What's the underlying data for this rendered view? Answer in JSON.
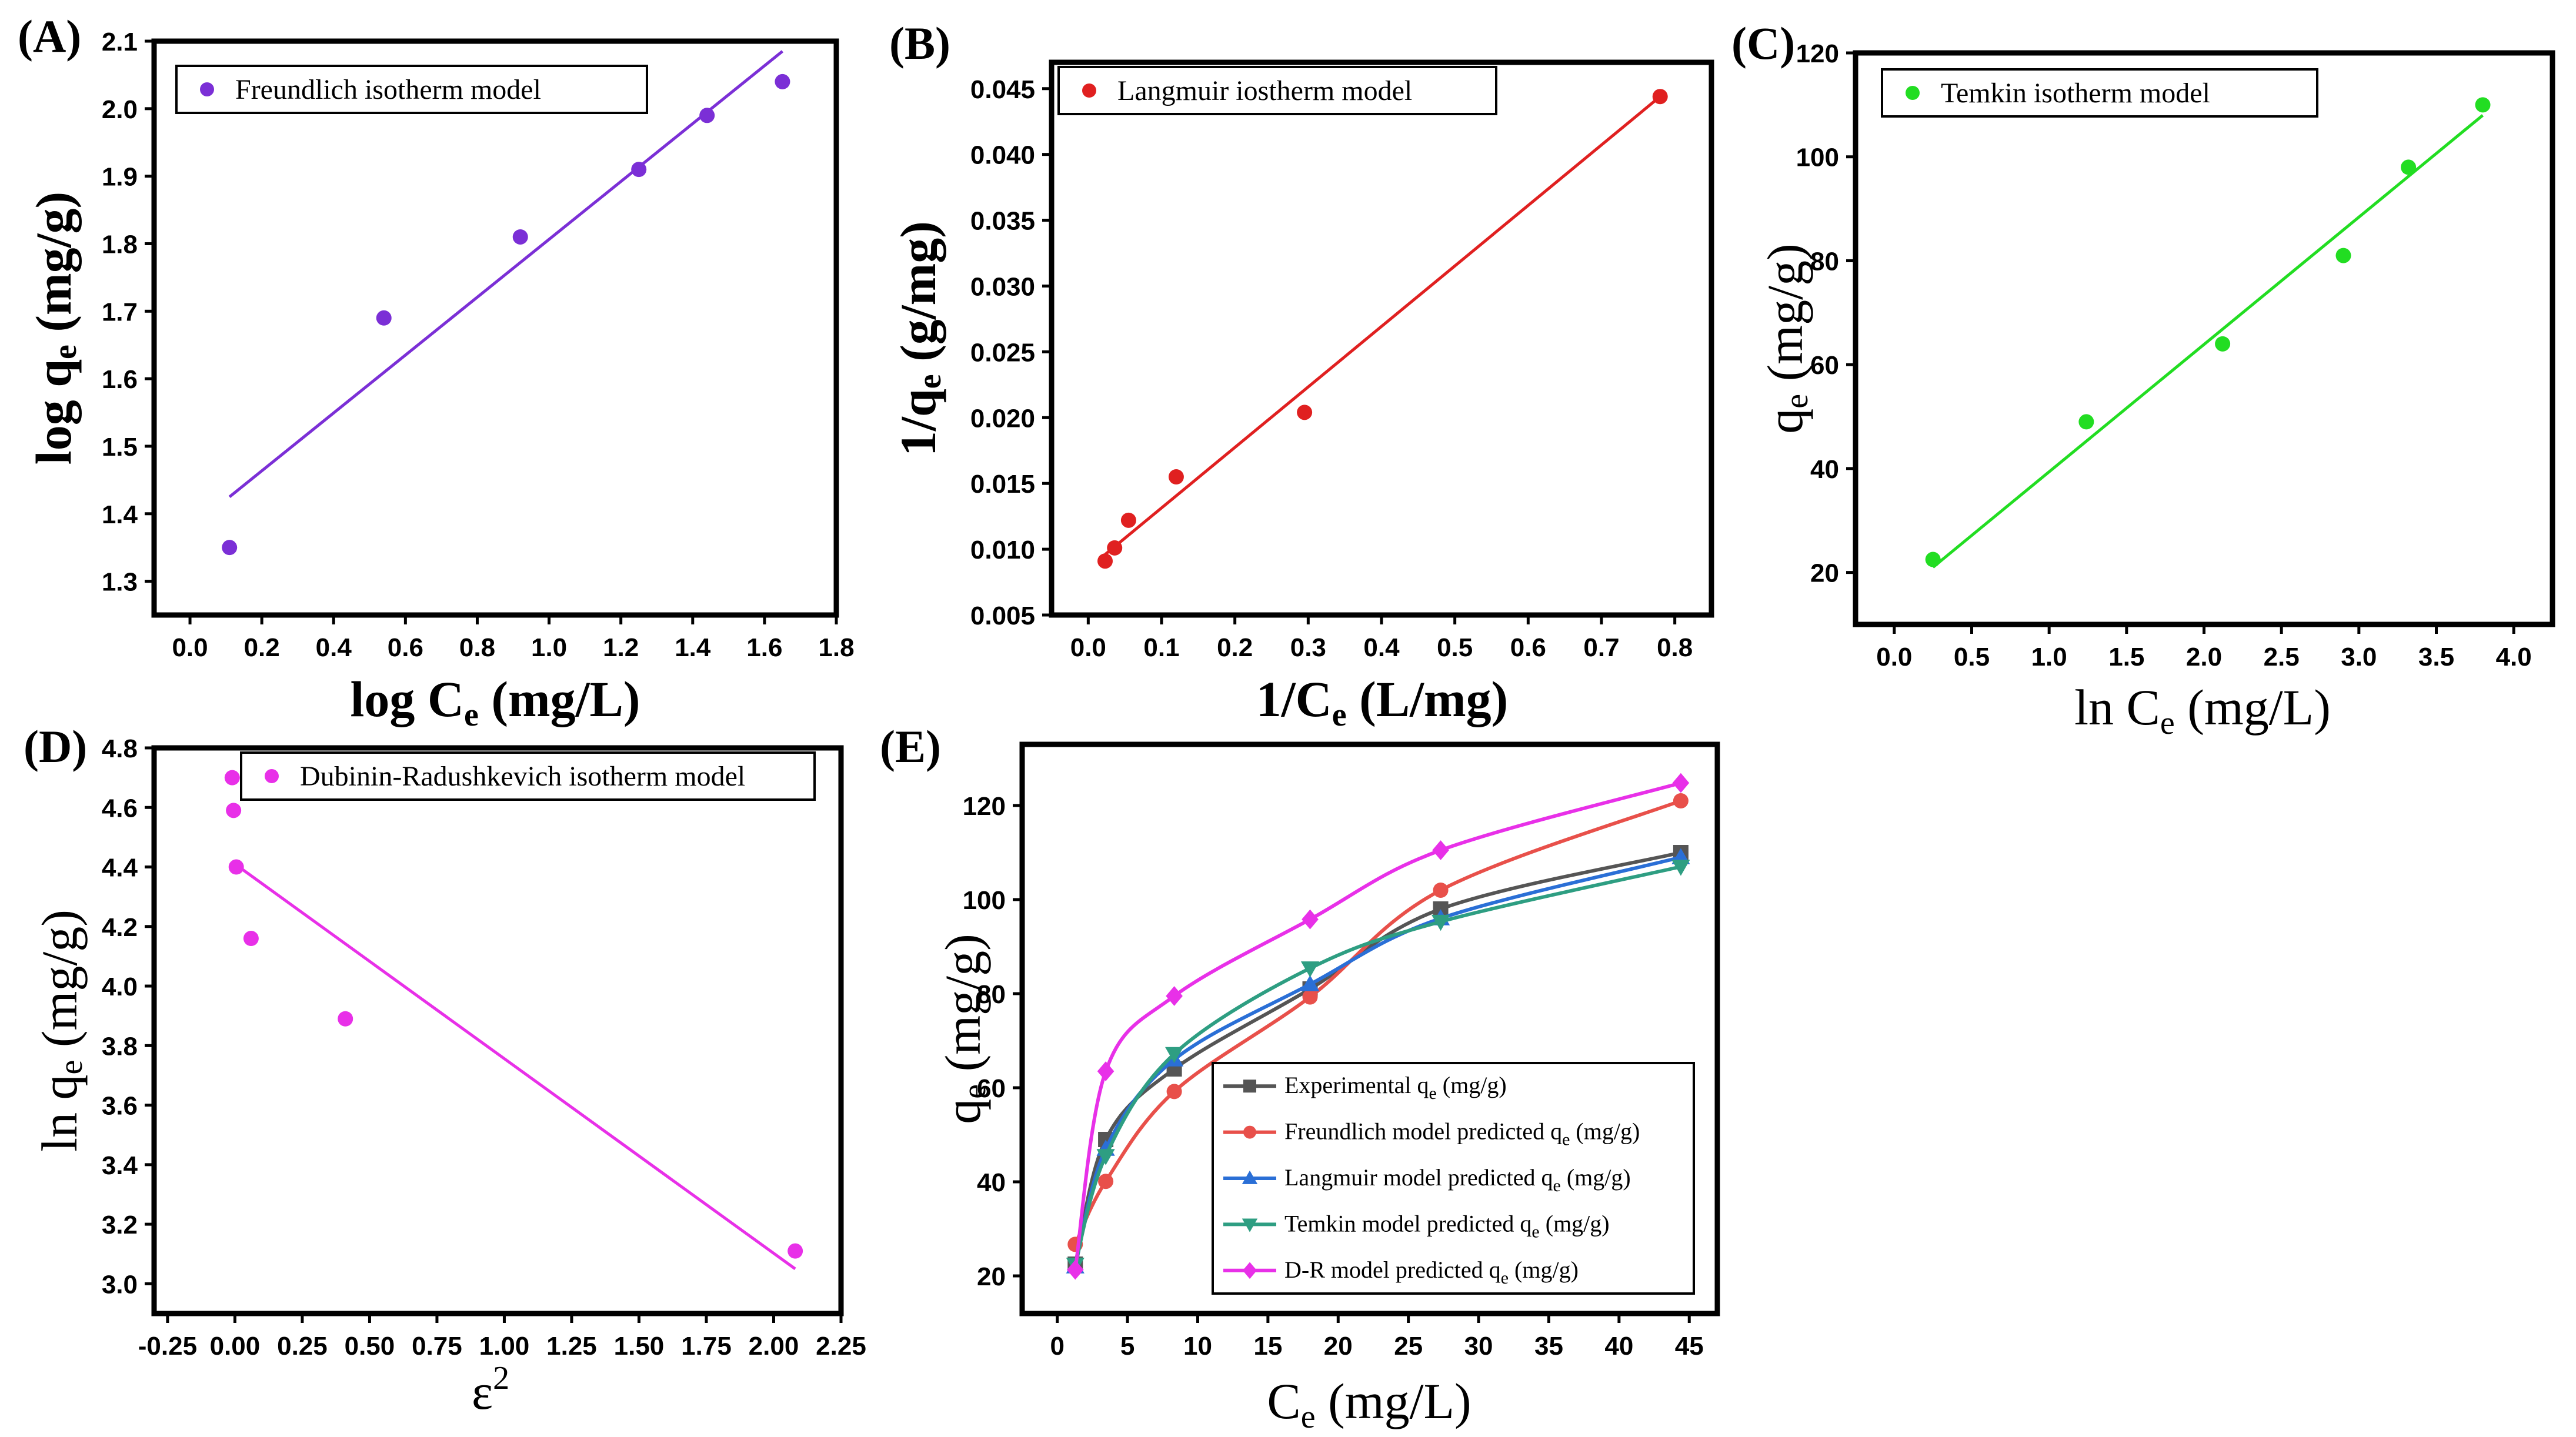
{
  "chart_data": [
    {
      "id": "A",
      "panel_label": "(A)",
      "type": "scatter",
      "legend": "Freundlich isotherm model",
      "color": "#7b2fd6",
      "xlabel_main": "log C",
      "xlabel_sub": "e",
      "xlabel_tail": " (mg/L)",
      "ylabel_main": "log q",
      "ylabel_sub": "e",
      "ylabel_tail": " (mg/g)",
      "xlim": [
        -0.1,
        1.8
      ],
      "ylim": [
        1.25,
        2.1
      ],
      "xticks": [
        0.0,
        0.2,
        0.4,
        0.6,
        0.8,
        1.0,
        1.2,
        1.4,
        1.6,
        1.8
      ],
      "xtick_labels": [
        "0.0",
        "0.2",
        "0.4",
        "0.6",
        "0.8",
        "1.0",
        "1.2",
        "1.4",
        "1.6",
        "1.8"
      ],
      "yticks": [
        1.3,
        1.4,
        1.5,
        1.6,
        1.7,
        1.8,
        1.9,
        2.0,
        2.1
      ],
      "ytick_labels": [
        "1.3",
        "1.4",
        "1.5",
        "1.6",
        "1.7",
        "1.8",
        "1.9",
        "2.0",
        "2.1"
      ],
      "points": {
        "x": [
          0.11,
          0.54,
          0.92,
          1.25,
          1.44,
          1.65
        ],
        "y": [
          1.35,
          1.69,
          1.81,
          1.91,
          1.99,
          2.04
        ]
      },
      "fit_line": {
        "x": [
          0.11,
          1.65
        ],
        "y": [
          1.425,
          2.085
        ]
      }
    },
    {
      "id": "B",
      "panel_label": "(B)",
      "type": "scatter",
      "legend": "Langmuir iostherm model",
      "color": "#e02020",
      "xlabel_main": "1/C",
      "xlabel_sub": "e",
      "xlabel_tail": " (L/mg)",
      "ylabel_main": "1/q",
      "ylabel_sub": "e",
      "ylabel_tail": " (g/mg)",
      "xlim": [
        -0.05,
        0.85
      ],
      "ylim": [
        0.005,
        0.047
      ],
      "xticks": [
        0.0,
        0.1,
        0.2,
        0.3,
        0.4,
        0.5,
        0.6,
        0.7,
        0.8
      ],
      "xtick_labels": [
        "0.0",
        "0.1",
        "0.2",
        "0.3",
        "0.4",
        "0.5",
        "0.6",
        "0.7",
        "0.8"
      ],
      "yticks": [
        0.005,
        0.01,
        0.015,
        0.02,
        0.025,
        0.03,
        0.035,
        0.04,
        0.045
      ],
      "ytick_labels": [
        "0.005",
        "0.010",
        "0.015",
        "0.020",
        "0.025",
        "0.030",
        "0.035",
        "0.040",
        "0.045"
      ],
      "points": {
        "x": [
          0.023,
          0.036,
          0.055,
          0.12,
          0.295,
          0.78
        ],
        "y": [
          0.0091,
          0.0101,
          0.0122,
          0.0155,
          0.0204,
          0.0444
        ]
      },
      "fit_line": {
        "x": [
          0.023,
          0.78
        ],
        "y": [
          0.0096,
          0.0444
        ]
      }
    },
    {
      "id": "C",
      "panel_label": "(C)",
      "type": "scatter",
      "legend": "Temkin isotherm model",
      "color": "#22dd22",
      "xlabel_main": "ln C",
      "xlabel_sub": "e",
      "xlabel_tail": " (mg/L)",
      "ylabel_main": "q",
      "ylabel_sub": "e",
      "ylabel_tail": " (mg/g)",
      "xlim": [
        -0.25,
        4.25
      ],
      "ylim": [
        10,
        120
      ],
      "xticks": [
        0.0,
        0.5,
        1.0,
        1.5,
        2.0,
        2.5,
        3.0,
        3.5,
        4.0
      ],
      "xtick_labels": [
        "0.0",
        "0.5",
        "1.0",
        "1.5",
        "2.0",
        "2.5",
        "3.0",
        "3.5",
        "4.0"
      ],
      "yticks": [
        20,
        40,
        60,
        80,
        100,
        120
      ],
      "ytick_labels": [
        "20",
        "40",
        "60",
        "80",
        "100",
        "120"
      ],
      "points": {
        "x": [
          0.25,
          1.24,
          2.12,
          2.9,
          3.32,
          3.8
        ],
        "y": [
          22.5,
          49,
          64,
          81,
          98,
          110
        ]
      },
      "fit_line": {
        "x": [
          0.25,
          3.8
        ],
        "y": [
          21,
          108
        ]
      }
    },
    {
      "id": "D",
      "panel_label": "(D)",
      "type": "scatter",
      "legend": "Dubinin-Radushkevich isotherm model",
      "color": "#e830e8",
      "xlabel_main": "ε",
      "xlabel_sup": "2",
      "ylabel_main": "ln q",
      "ylabel_sub": "e",
      "ylabel_tail": " (mg/g)",
      "xlim": [
        -0.3,
        2.25
      ],
      "ylim": [
        2.9,
        4.8
      ],
      "xticks": [
        -0.25,
        0.0,
        0.25,
        0.5,
        0.75,
        1.0,
        1.25,
        1.5,
        1.75,
        2.0,
        2.25
      ],
      "xtick_labels": [
        "-0.25",
        "0.00",
        "0.25",
        "0.50",
        "0.75",
        "1.00",
        "1.25",
        "1.50",
        "1.75",
        "2.00",
        "2.25"
      ],
      "yticks": [
        3.0,
        3.2,
        3.4,
        3.6,
        3.8,
        4.0,
        4.2,
        4.4,
        4.6,
        4.8
      ],
      "ytick_labels": [
        "3.0",
        "3.2",
        "3.4",
        "3.6",
        "3.8",
        "4.0",
        "4.2",
        "4.4",
        "4.6",
        "4.8"
      ],
      "points": {
        "x": [
          -0.01,
          -0.005,
          0.005,
          0.06,
          0.41,
          2.08
        ],
        "y": [
          4.7,
          4.59,
          4.4,
          4.16,
          3.89,
          3.11
        ]
      },
      "fit_line": {
        "x": [
          0.0,
          2.08
        ],
        "y": [
          4.41,
          3.05
        ]
      }
    },
    {
      "id": "E",
      "panel_label": "(E)",
      "type": "line",
      "xlabel_main": "C",
      "xlabel_sub": "e",
      "xlabel_tail": " (mg/L)",
      "ylabel_main": "q",
      "ylabel_sub": "e",
      "ylabel_tail": " (mg/g)",
      "xlim": [
        -2.5,
        47
      ],
      "ylim": [
        12,
        133
      ],
      "xticks": [
        0,
        5,
        10,
        15,
        20,
        25,
        30,
        35,
        40,
        45
      ],
      "xtick_labels": [
        "0",
        "5",
        "10",
        "15",
        "20",
        "25",
        "30",
        "35",
        "40",
        "45"
      ],
      "yticks": [
        20,
        40,
        60,
        80,
        100,
        120
      ],
      "ytick_labels": [
        "20",
        "40",
        "60",
        "80",
        "100",
        "120"
      ],
      "x": [
        1.28,
        3.45,
        8.33,
        18.0,
        27.3,
        44.4
      ],
      "series": [
        {
          "name": "Experimental q",
          "name_sub": "e",
          "name_tail": " (mg/g)",
          "color": "#555555",
          "marker": "square",
          "values": [
            22.5,
            49,
            64,
            81,
            98,
            110
          ]
        },
        {
          "name": "Freundlich model predicted q",
          "name_sub": "e",
          "name_tail": " (mg/g)",
          "color": "#e8504a",
          "marker": "circle",
          "values": [
            26.7,
            40.1,
            59.2,
            79.3,
            102,
            121
          ]
        },
        {
          "name": "Langmuir model predicted q",
          "name_sub": "e",
          "name_tail": " (mg/g)",
          "color": "#2a6fd6",
          "marker": "triangle-up",
          "values": [
            22,
            47,
            66,
            82,
            96,
            109
          ]
        },
        {
          "name": "Temkin model predicted q",
          "name_sub": "e",
          "name_tail": " (mg/g)",
          "color": "#2e9e82",
          "marker": "triangle-down",
          "values": [
            22.4,
            45.5,
            67.2,
            85.4,
            95.3,
            107
          ]
        },
        {
          "name": "D-R model predicted q",
          "name_sub": "e",
          "name_tail": " (mg/g)",
          "color": "#e830e8",
          "marker": "diamond",
          "values": [
            21.3,
            63.5,
            79.5,
            95.8,
            110.5,
            124.8
          ]
        }
      ]
    }
  ]
}
